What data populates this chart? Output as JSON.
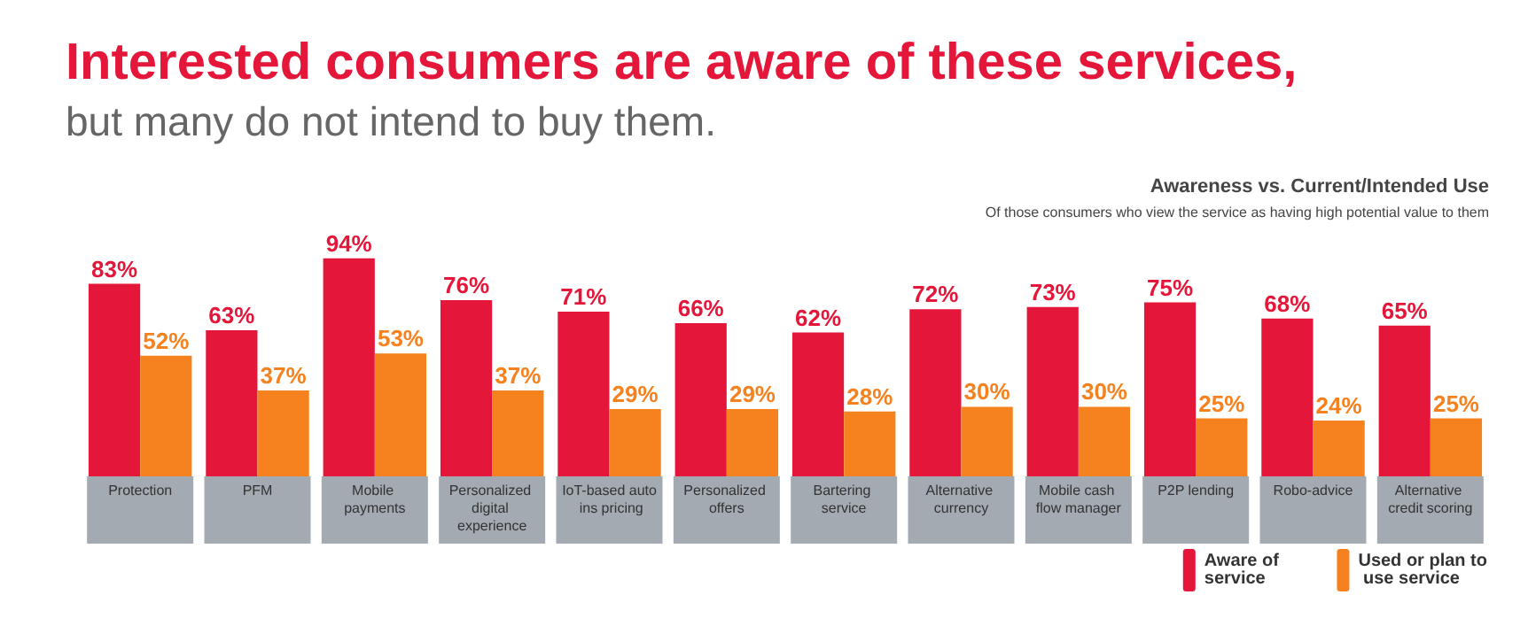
{
  "chart_data": {
    "type": "bar",
    "title": "Interested consumers are aware of these services,",
    "subtitle": "but many do not intend to buy them.",
    "annotations": [
      "Awareness vs. Current/Intended Use",
      "Of those consumers who view the service as having high potential value to them"
    ],
    "categories": [
      "Protection",
      "PFM",
      "Mobile payments",
      "Personalized digital experience",
      "IoT-based auto ins pricing",
      "Personalized offers",
      "Bartering service",
      "Alternative currency",
      "Mobile cash flow manager",
      "P2P lending",
      "Robo-advice",
      "Alternative credit scoring"
    ],
    "series": [
      {
        "name": "Aware of service",
        "color": "#e4173a",
        "values": [
          83,
          63,
          94,
          76,
          71,
          66,
          62,
          72,
          73,
          75,
          68,
          65
        ],
        "value_labels": [
          "83%",
          "63%",
          "94%",
          "76%",
          "71%",
          "66%",
          "62%",
          "72%",
          "73%",
          "75%",
          "68%",
          "65%"
        ]
      },
      {
        "name": "Used or plan to use service",
        "color": "#f5821f",
        "values": [
          52,
          37,
          53,
          37,
          29,
          29,
          28,
          30,
          30,
          25,
          24,
          25
        ],
        "value_labels": [
          "52%",
          "37%",
          "53%",
          "37%",
          "29%",
          "29%",
          "28%",
          "30%",
          "30%",
          "25%",
          "24%",
          "25%"
        ]
      }
    ],
    "legend": "bottom right"
  }
}
